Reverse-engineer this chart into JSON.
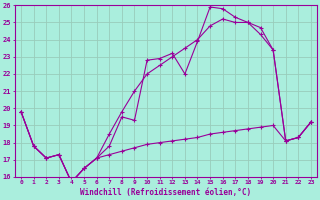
{
  "xlabel": "Windchill (Refroidissement éolien,°C)",
  "x_hours": [
    0,
    1,
    2,
    3,
    4,
    5,
    6,
    7,
    8,
    9,
    10,
    11,
    12,
    13,
    14,
    15,
    16,
    17,
    18,
    19,
    20,
    21,
    22,
    23
  ],
  "line_sharp": [
    19.8,
    17.8,
    17.1,
    17.3,
    15.7,
    16.5,
    17.1,
    17.8,
    19.5,
    19.3,
    22.8,
    22.9,
    23.2,
    22.0,
    23.9,
    25.9,
    25.8,
    25.3,
    25.0,
    24.3,
    23.4,
    18.1,
    18.3,
    19.2
  ],
  "line_smooth": [
    19.8,
    17.8,
    17.1,
    17.3,
    15.7,
    16.5,
    17.1,
    18.5,
    19.8,
    21.0,
    22.0,
    22.5,
    23.0,
    23.5,
    24.0,
    24.8,
    25.2,
    25.0,
    25.0,
    24.7,
    23.4,
    18.1,
    18.3,
    19.2
  ],
  "line_flat": [
    19.8,
    17.8,
    17.1,
    17.3,
    15.7,
    16.5,
    17.1,
    17.3,
    17.5,
    17.7,
    17.9,
    18.0,
    18.1,
    18.2,
    18.3,
    18.5,
    18.6,
    18.7,
    18.8,
    18.9,
    19.0,
    18.1,
    18.3,
    19.2
  ],
  "color": "#990099",
  "bg_color": "#aaeedd",
  "grid_color": "#99ccbb",
  "ylim": [
    16,
    26
  ],
  "yticks": [
    16,
    17,
    18,
    19,
    20,
    21,
    22,
    23,
    24,
    25,
    26
  ]
}
